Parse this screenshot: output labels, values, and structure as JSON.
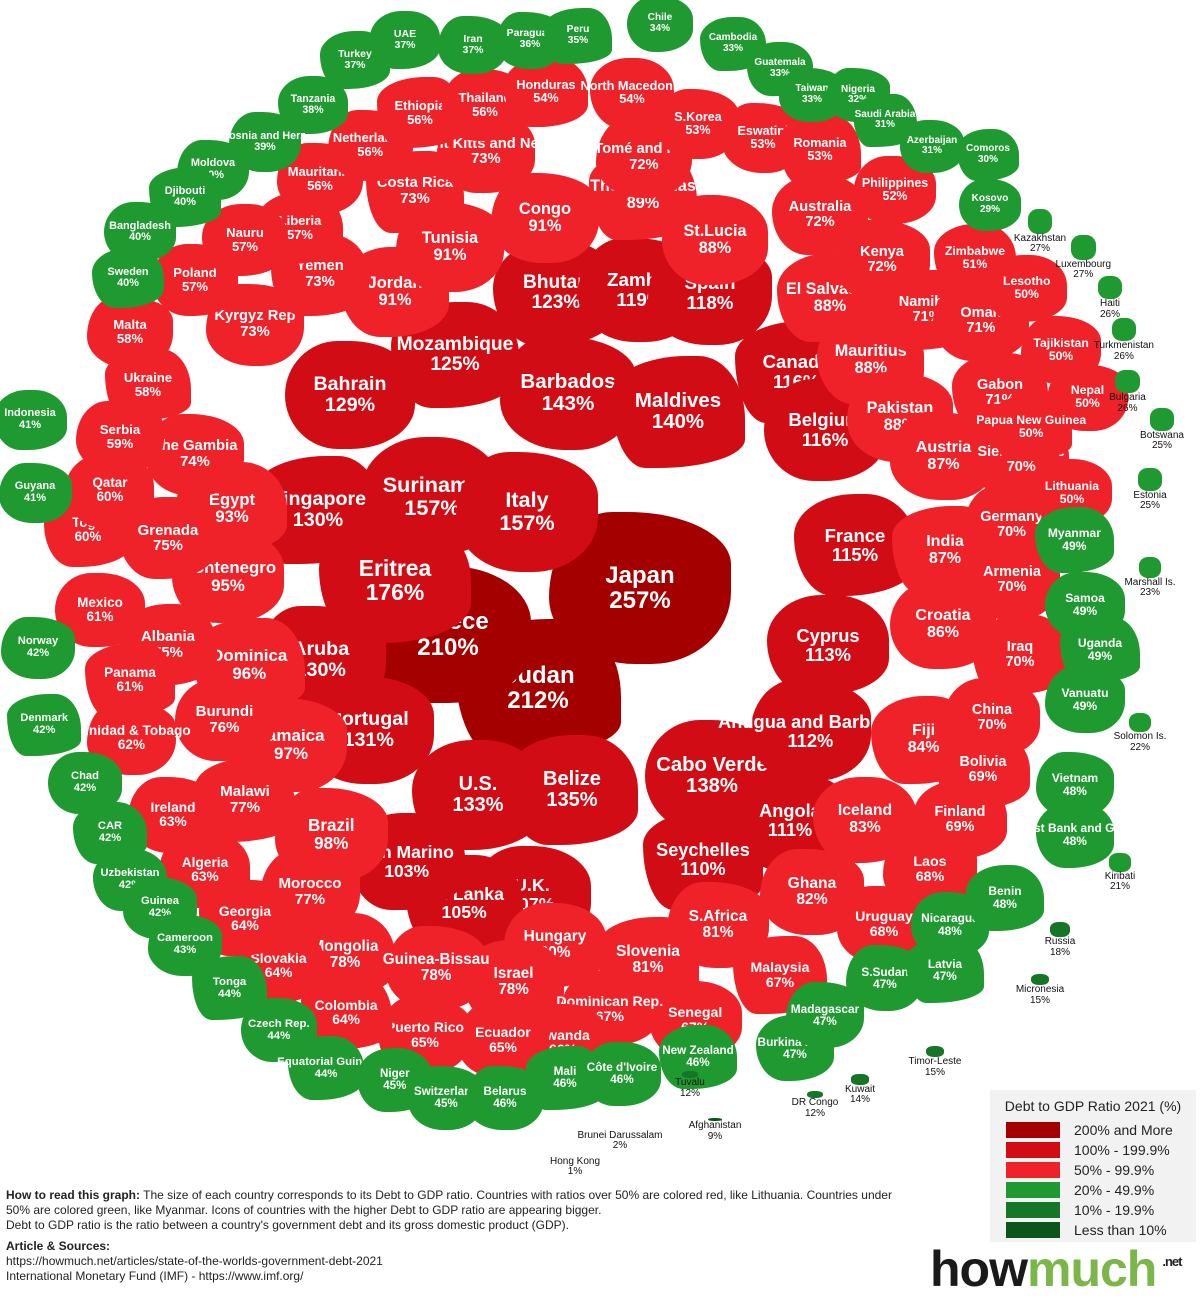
{
  "chart_data": {
    "type": "proportional-symbol",
    "legend": {
      "title": "Debt to GDP Ratio 2021 (%)",
      "placement": "bottom-right",
      "bins": [
        {
          "label": "200% and More",
          "min": 200,
          "color": "#a50000"
        },
        {
          "label": "100% - 199.9%",
          "min": 100,
          "color": "#d10c14"
        },
        {
          "label": "50% - 99.9%",
          "min": 50,
          "color": "#f02229"
        },
        {
          "label": "20% - 49.9%",
          "min": 20,
          "color": "#1f9a30"
        },
        {
          "label": "10% - 19.9%",
          "min": 10,
          "color": "#167628"
        },
        {
          "label": "Less than 10%",
          "min": 0,
          "color": "#0b551a"
        }
      ]
    },
    "countries": [
      {
        "name": "Japan",
        "value": 257
      },
      {
        "name": "Sudan",
        "value": 212
      },
      {
        "name": "Greece",
        "value": 210
      },
      {
        "name": "Eritrea",
        "value": 176
      },
      {
        "name": "Suriname",
        "value": 157
      },
      {
        "name": "Italy",
        "value": 157
      },
      {
        "name": "Barbados",
        "value": 143
      },
      {
        "name": "Maldives",
        "value": 140
      },
      {
        "name": "Cabo Verde",
        "value": 138
      },
      {
        "name": "Belize",
        "value": 135
      },
      {
        "name": "U.S.",
        "value": 133
      },
      {
        "name": "Portugal",
        "value": 131
      },
      {
        "name": "Aruba",
        "value": 130
      },
      {
        "name": "Singapore",
        "value": 130
      },
      {
        "name": "Bahrain",
        "value": 129
      },
      {
        "name": "Mozambique",
        "value": 125
      },
      {
        "name": "Bhutan",
        "value": 123
      },
      {
        "name": "Zambia",
        "value": 119
      },
      {
        "name": "Spain",
        "value": 118
      },
      {
        "name": "Canada",
        "value": 116
      },
      {
        "name": "Belgium",
        "value": 116
      },
      {
        "name": "France",
        "value": 115
      },
      {
        "name": "Cyprus",
        "value": 113
      },
      {
        "name": "Antigua and Barbuda",
        "value": 112
      },
      {
        "name": "Angola",
        "value": 111
      },
      {
        "name": "Seychelles",
        "value": 110
      },
      {
        "name": "U.K.",
        "value": 107
      },
      {
        "name": "Sri Lanka",
        "value": 105
      },
      {
        "name": "San Marino",
        "value": 103
      },
      {
        "name": "Brazil",
        "value": 98
      },
      {
        "name": "Jamaica",
        "value": 97
      },
      {
        "name": "Dominica",
        "value": 96
      },
      {
        "name": "Montenegro",
        "value": 95
      },
      {
        "name": "Egypt",
        "value": 93
      },
      {
        "name": "Jordan",
        "value": 91
      },
      {
        "name": "Tunisia",
        "value": 91
      },
      {
        "name": "Congo",
        "value": 91
      },
      {
        "name": "The Bahamas",
        "value": 89
      },
      {
        "name": "St.Lucia",
        "value": 88
      },
      {
        "name": "El Salvador",
        "value": 88
      },
      {
        "name": "Mauritius",
        "value": 88
      },
      {
        "name": "Pakistan",
        "value": 88
      },
      {
        "name": "Austria",
        "value": 87
      },
      {
        "name": "India",
        "value": 87
      },
      {
        "name": "Croatia",
        "value": 86
      },
      {
        "name": "Fiji",
        "value": 84
      },
      {
        "name": "Iceland",
        "value": 83
      },
      {
        "name": "Ghana",
        "value": 82
      },
      {
        "name": "S.Africa",
        "value": 81
      },
      {
        "name": "Slovenia",
        "value": 81
      },
      {
        "name": "Hungary",
        "value": 80
      },
      {
        "name": "Mongolia",
        "value": 78
      },
      {
        "name": "Israel",
        "value": 78
      },
      {
        "name": "Guinea-Bissau",
        "value": 78
      },
      {
        "name": "Morocco",
        "value": 77
      },
      {
        "name": "Malawi",
        "value": 77
      },
      {
        "name": "Burundi",
        "value": 76
      },
      {
        "name": "Albania",
        "value": 75
      },
      {
        "name": "Grenada",
        "value": 75
      },
      {
        "name": "The Gambia",
        "value": 74
      },
      {
        "name": "Kyrgyz Rep",
        "value": 73
      },
      {
        "name": "Costa Rica",
        "value": 73
      },
      {
        "name": "Saint Kitts and Nevis",
        "value": 73
      },
      {
        "name": "Yemen",
        "value": 73
      },
      {
        "name": "Australia",
        "value": 72
      },
      {
        "name": "Kenya",
        "value": 72
      },
      {
        "name": "São Tomé and Príncipe",
        "value": 72
      },
      {
        "name": "Namibia",
        "value": 71
      },
      {
        "name": "Oman",
        "value": 71
      },
      {
        "name": "Gabon",
        "value": 71
      },
      {
        "name": "Sierra Leone",
        "value": 70
      },
      {
        "name": "Germany",
        "value": 70
      },
      {
        "name": "Armenia",
        "value": 70
      },
      {
        "name": "Iraq",
        "value": 70
      },
      {
        "name": "China",
        "value": 70
      },
      {
        "name": "Bolivia",
        "value": 69
      },
      {
        "name": "Finland",
        "value": 69
      },
      {
        "name": "Uruguay",
        "value": 68
      },
      {
        "name": "Laos",
        "value": 68
      },
      {
        "name": "Malaysia",
        "value": 67
      },
      {
        "name": "Senegal",
        "value": 67
      },
      {
        "name": "Dominican Rep.",
        "value": 67
      },
      {
        "name": "Rwanda",
        "value": 66
      },
      {
        "name": "Ecuador",
        "value": 65
      },
      {
        "name": "Puerto Rico",
        "value": 65
      },
      {
        "name": "Colombia",
        "value": 64
      },
      {
        "name": "Slovakia",
        "value": 64
      },
      {
        "name": "Georgia",
        "value": 64
      },
      {
        "name": "Algeria",
        "value": 63
      },
      {
        "name": "Ireland",
        "value": 63
      },
      {
        "name": "Trinidad & Tobago",
        "value": 62
      },
      {
        "name": "Panama",
        "value": 61
      },
      {
        "name": "Mexico",
        "value": 61
      },
      {
        "name": "Togo",
        "value": 60
      },
      {
        "name": "Qatar",
        "value": 60
      },
      {
        "name": "Serbia",
        "value": 59
      },
      {
        "name": "Malta",
        "value": 58
      },
      {
        "name": "Ukraine",
        "value": 58
      },
      {
        "name": "Poland",
        "value": 57
      },
      {
        "name": "Liberia",
        "value": 57
      },
      {
        "name": "Nauru",
        "value": 57
      },
      {
        "name": "Mauritania",
        "value": 56
      },
      {
        "name": "Netherlands",
        "value": 56
      },
      {
        "name": "Ethiopia",
        "value": 56
      },
      {
        "name": "Thailand",
        "value": 56
      },
      {
        "name": "Honduras",
        "value": 54
      },
      {
        "name": "North Macedonia",
        "value": 54
      },
      {
        "name": "S.Korea",
        "value": 53
      },
      {
        "name": "Eswatini",
        "value": 53
      },
      {
        "name": "Romania",
        "value": 53
      },
      {
        "name": "Philippines",
        "value": 52
      },
      {
        "name": "Zimbabwe",
        "value": 51
      },
      {
        "name": "Lesotho",
        "value": 50
      },
      {
        "name": "Tajikistan",
        "value": 50
      },
      {
        "name": "Nepal",
        "value": 50
      },
      {
        "name": "Papua New Guinea",
        "value": 50
      },
      {
        "name": "Lithuania",
        "value": 50
      },
      {
        "name": "Turkey",
        "value": 37
      },
      {
        "name": "UAE",
        "value": 37
      },
      {
        "name": "Iran",
        "value": 37
      },
      {
        "name": "Paraguay",
        "value": 36
      },
      {
        "name": "Peru",
        "value": 35
      },
      {
        "name": "Chile",
        "value": 34
      },
      {
        "name": "Cambodia",
        "value": 33
      },
      {
        "name": "Guatemala",
        "value": 33
      },
      {
        "name": "Taiwan",
        "value": 33
      },
      {
        "name": "Nigeria",
        "value": 32
      },
      {
        "name": "Saudi Arabia",
        "value": 31
      },
      {
        "name": "Azerbaijan",
        "value": 31
      },
      {
        "name": "Comoros",
        "value": 30
      },
      {
        "name": "Tanzania",
        "value": 38
      },
      {
        "name": "Bosnia and Herz.",
        "value": 39
      },
      {
        "name": "Moldova",
        "value": 40
      },
      {
        "name": "Djibouti",
        "value": 40
      },
      {
        "name": "Bangladesh",
        "value": 40
      },
      {
        "name": "Sweden",
        "value": 40
      },
      {
        "name": "Indonesia",
        "value": 41
      },
      {
        "name": "Guyana",
        "value": 41
      },
      {
        "name": "Norway",
        "value": 42
      },
      {
        "name": "Denmark",
        "value": 42
      },
      {
        "name": "Chad",
        "value": 42
      },
      {
        "name": "CAR",
        "value": 42
      },
      {
        "name": "Uzbekistan",
        "value": 42
      },
      {
        "name": "Guinea",
        "value": 42
      },
      {
        "name": "Cameroon",
        "value": 43
      },
      {
        "name": "Tonga",
        "value": 44
      },
      {
        "name": "Czech Rep.",
        "value": 44
      },
      {
        "name": "Equatorial Guinea",
        "value": 44
      },
      {
        "name": "Niger",
        "value": 45
      },
      {
        "name": "Switzerland",
        "value": 45
      },
      {
        "name": "Belarus",
        "value": 46
      },
      {
        "name": "Mali",
        "value": 46
      },
      {
        "name": "Côte d'Ivoire",
        "value": 46
      },
      {
        "name": "New Zealand",
        "value": 46
      },
      {
        "name": "Burkina Faso",
        "value": 47
      },
      {
        "name": "Madagascar",
        "value": 47
      },
      {
        "name": "S.Sudan",
        "value": 47
      },
      {
        "name": "Latvia",
        "value": 47
      },
      {
        "name": "Nicaragua",
        "value": 48
      },
      {
        "name": "Benin",
        "value": 48
      },
      {
        "name": "West Bank and Gaza",
        "value": 48
      },
      {
        "name": "Vietnam",
        "value": 48
      },
      {
        "name": "Vanuatu",
        "value": 49
      },
      {
        "name": "Uganda",
        "value": 49
      },
      {
        "name": "Samoa",
        "value": 49
      },
      {
        "name": "Myanmar",
        "value": 49
      },
      {
        "name": "Marshall Is.",
        "value": 23
      },
      {
        "name": "Solomon Is.",
        "value": 22
      },
      {
        "name": "Kiribati",
        "value": 21
      },
      {
        "name": "Estonia",
        "value": 25
      },
      {
        "name": "Botswana",
        "value": 25
      },
      {
        "name": "Bulgaria",
        "value": 26
      },
      {
        "name": "Turkmenistan",
        "value": 26
      },
      {
        "name": "Haiti",
        "value": 26
      },
      {
        "name": "Luxembourg",
        "value": 27
      },
      {
        "name": "Kazakhstan",
        "value": 27
      },
      {
        "name": "Kosovo",
        "value": 29
      },
      {
        "name": "Russia",
        "value": 18
      },
      {
        "name": "Micronesia",
        "value": 15
      },
      {
        "name": "Timor-Leste",
        "value": 15
      },
      {
        "name": "Kuwait",
        "value": 14
      },
      {
        "name": "DR Congo",
        "value": 12
      },
      {
        "name": "Tuvalu",
        "value": 12
      },
      {
        "name": "Afghanistan",
        "value": 9
      },
      {
        "name": "Brunei Darussalam",
        "value": 2
      },
      {
        "name": "Hong Kong",
        "value": 1
      }
    ]
  },
  "footer": {
    "how_to_label": "How to read this graph:",
    "how_to_text": " The size of each country corresponds to its Debt to GDP ratio. Countries with ratios over 50% are colored red, like Lithuania. Countries under 50% are colored green, like Myanmar. Icons of countries with the higher Debt to GDP ratio are appearing bigger.",
    "definition": "Debt to GDP ratio is the ratio between a country's government debt and its gross domestic product (GDP).",
    "sources_title": "Article & Sources:",
    "source_1": "https://howmuch.net/articles/state-of-the-worlds-government-debt-2021",
    "source_2": "International Monetary Fund (IMF) - https://www.imf.org/"
  },
  "logo": {
    "how": "how",
    "much": "much",
    "net": ".net"
  }
}
